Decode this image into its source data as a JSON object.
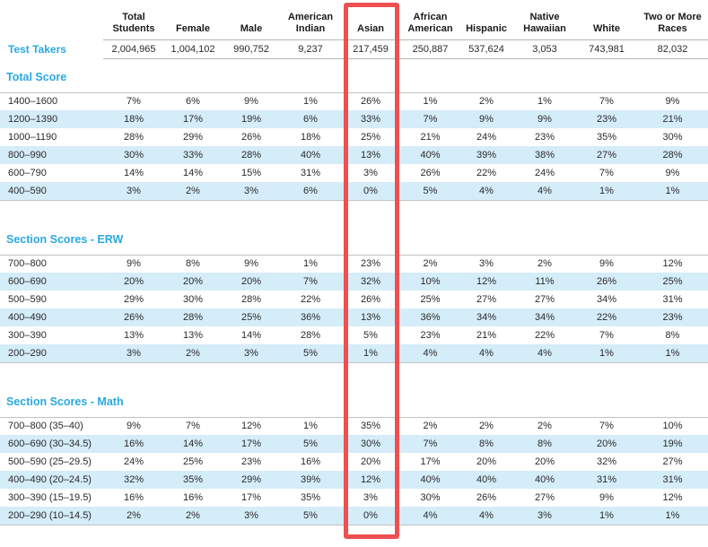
{
  "colors": {
    "accent": "#29a9e1",
    "stripe": "#d5ecf9",
    "highlight": "#ee5051",
    "rule": "#b5b5b5"
  },
  "table": {
    "columns": [
      "Total Students",
      "Female",
      "Male",
      "American Indian",
      "Asian",
      "African American",
      "Hispanic",
      "Native Hawaiian",
      "White",
      "Two or More Races"
    ],
    "highlighted_column": "Asian",
    "test_takers_label": "Test Takers",
    "test_takers": [
      "2,004,965",
      "1,004,102",
      "990,752",
      "9,237",
      "217,459",
      "250,887",
      "537,624",
      "3,053",
      "743,981",
      "82,032"
    ],
    "sections": [
      {
        "title": "Total Score",
        "rows": [
          {
            "label": "1400–1600",
            "values": [
              "7%",
              "6%",
              "9%",
              "1%",
              "26%",
              "1%",
              "2%",
              "1%",
              "7%",
              "9%"
            ]
          },
          {
            "label": "1200–1390",
            "values": [
              "18%",
              "17%",
              "19%",
              "6%",
              "33%",
              "7%",
              "9%",
              "9%",
              "23%",
              "21%"
            ]
          },
          {
            "label": "1000–1190",
            "values": [
              "28%",
              "29%",
              "26%",
              "18%",
              "25%",
              "21%",
              "24%",
              "23%",
              "35%",
              "30%"
            ]
          },
          {
            "label": "800–990",
            "values": [
              "30%",
              "33%",
              "28%",
              "40%",
              "13%",
              "40%",
              "39%",
              "38%",
              "27%",
              "28%"
            ]
          },
          {
            "label": "600–790",
            "values": [
              "14%",
              "14%",
              "15%",
              "31%",
              "3%",
              "26%",
              "22%",
              "24%",
              "7%",
              "9%"
            ]
          },
          {
            "label": "400–590",
            "values": [
              "3%",
              "2%",
              "3%",
              "6%",
              "0%",
              "5%",
              "4%",
              "4%",
              "1%",
              "1%"
            ]
          }
        ]
      },
      {
        "title": "Section Scores - ERW",
        "rows": [
          {
            "label": "700–800",
            "values": [
              "9%",
              "8%",
              "9%",
              "1%",
              "23%",
              "2%",
              "3%",
              "2%",
              "9%",
              "12%"
            ]
          },
          {
            "label": "600–690",
            "values": [
              "20%",
              "20%",
              "20%",
              "7%",
              "32%",
              "10%",
              "12%",
              "11%",
              "26%",
              "25%"
            ]
          },
          {
            "label": "500–590",
            "values": [
              "29%",
              "30%",
              "28%",
              "22%",
              "26%",
              "25%",
              "27%",
              "27%",
              "34%",
              "31%"
            ]
          },
          {
            "label": "400–490",
            "values": [
              "26%",
              "28%",
              "25%",
              "36%",
              "13%",
              "36%",
              "34%",
              "34%",
              "22%",
              "23%"
            ]
          },
          {
            "label": "300–390",
            "values": [
              "13%",
              "13%",
              "14%",
              "28%",
              "5%",
              "23%",
              "21%",
              "22%",
              "7%",
              "8%"
            ]
          },
          {
            "label": "200–290",
            "values": [
              "3%",
              "2%",
              "3%",
              "5%",
              "1%",
              "4%",
              "4%",
              "4%",
              "1%",
              "1%"
            ]
          }
        ]
      },
      {
        "title": "Section Scores - Math",
        "rows": [
          {
            "label": "700–800 (35–40)",
            "values": [
              "9%",
              "7%",
              "12%",
              "1%",
              "35%",
              "2%",
              "2%",
              "2%",
              "7%",
              "10%"
            ]
          },
          {
            "label": "600–690 (30–34.5)",
            "values": [
              "16%",
              "14%",
              "17%",
              "5%",
              "30%",
              "7%",
              "8%",
              "8%",
              "20%",
              "19%"
            ]
          },
          {
            "label": "500–590 (25–29.5)",
            "values": [
              "24%",
              "25%",
              "23%",
              "16%",
              "20%",
              "17%",
              "20%",
              "20%",
              "32%",
              "27%"
            ]
          },
          {
            "label": "400–490 (20–24.5)",
            "values": [
              "32%",
              "35%",
              "29%",
              "39%",
              "12%",
              "40%",
              "40%",
              "40%",
              "31%",
              "31%"
            ]
          },
          {
            "label": "300–390 (15–19.5)",
            "values": [
              "16%",
              "16%",
              "17%",
              "35%",
              "3%",
              "30%",
              "26%",
              "27%",
              "9%",
              "12%"
            ]
          },
          {
            "label": "200–290 (10–14.5)",
            "values": [
              "2%",
              "2%",
              "3%",
              "5%",
              "0%",
              "4%",
              "4%",
              "3%",
              "1%",
              "1%"
            ]
          }
        ]
      }
    ]
  }
}
